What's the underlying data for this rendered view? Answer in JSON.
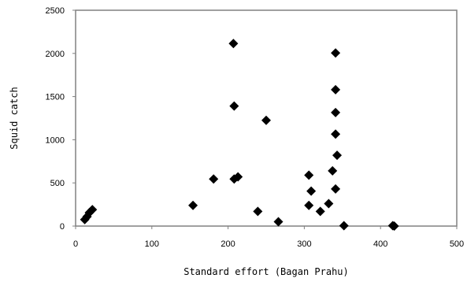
{
  "chart_data": {
    "type": "scatter",
    "xlabel": "Standard effort (Bagan Prahu)",
    "ylabel": "Squid catch",
    "xlim": [
      0,
      500
    ],
    "ylim": [
      0,
      2500
    ],
    "x_ticks": [
      0,
      100,
      200,
      300,
      400,
      500
    ],
    "y_ticks": [
      0,
      500,
      1000,
      1500,
      2000,
      2500
    ],
    "grid": false,
    "legend": "none",
    "marker": "diamond",
    "marker_color": "#000000",
    "axis_color": "#808080",
    "series": [
      {
        "points": [
          {
            "x": 12,
            "y": 75
          },
          {
            "x": 15,
            "y": 110
          },
          {
            "x": 18,
            "y": 155
          },
          {
            "x": 22,
            "y": 190
          },
          {
            "x": 154,
            "y": 240
          },
          {
            "x": 181,
            "y": 545
          },
          {
            "x": 207,
            "y": 2115
          },
          {
            "x": 208,
            "y": 1390
          },
          {
            "x": 208,
            "y": 545
          },
          {
            "x": 213,
            "y": 570
          },
          {
            "x": 239,
            "y": 170
          },
          {
            "x": 250,
            "y": 1225
          },
          {
            "x": 266,
            "y": 50
          },
          {
            "x": 306,
            "y": 590
          },
          {
            "x": 306,
            "y": 240
          },
          {
            "x": 309,
            "y": 405
          },
          {
            "x": 321,
            "y": 170
          },
          {
            "x": 332,
            "y": 260
          },
          {
            "x": 337,
            "y": 640
          },
          {
            "x": 341,
            "y": 2005
          },
          {
            "x": 341,
            "y": 1580
          },
          {
            "x": 341,
            "y": 1315
          },
          {
            "x": 341,
            "y": 1065
          },
          {
            "x": 341,
            "y": 430
          },
          {
            "x": 343,
            "y": 820
          },
          {
            "x": 352,
            "y": 5
          },
          {
            "x": 416,
            "y": 5
          },
          {
            "x": 418,
            "y": 0
          }
        ]
      }
    ]
  }
}
